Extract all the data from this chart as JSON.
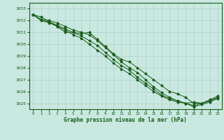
{
  "xlabel": "Graphe pression niveau de la mer (hPa)",
  "background_color": "#c8e8e0",
  "grid_color": "#b0d0c8",
  "line_color": "#1a5c1a",
  "text_color": "#1a5c1a",
  "ylim": [
    1024.5,
    1033.5
  ],
  "xlim": [
    -0.5,
    23.5
  ],
  "yticks": [
    1025,
    1026,
    1027,
    1028,
    1029,
    1030,
    1031,
    1032,
    1033
  ],
  "xticks": [
    0,
    1,
    2,
    3,
    4,
    5,
    6,
    7,
    8,
    9,
    10,
    11,
    12,
    13,
    14,
    15,
    16,
    17,
    18,
    19,
    20,
    21,
    22,
    23
  ],
  "series": [
    [
      1032.5,
      1032.3,
      1031.9,
      1031.5,
      1031.0,
      1031.0,
      1030.9,
      1031.0,
      1030.4,
      1029.8,
      1029.2,
      1028.7,
      1028.5,
      1028.0,
      1027.5,
      1027.0,
      1026.5,
      1026.0,
      1025.8,
      1025.5,
      1025.0,
      1025.0,
      1025.3,
      1025.6
    ],
    [
      1032.5,
      1032.1,
      1032.0,
      1031.8,
      1031.5,
      1031.2,
      1031.0,
      1030.8,
      1030.3,
      1029.7,
      1029.1,
      1028.5,
      1028.0,
      1027.6,
      1027.0,
      1026.4,
      1025.9,
      1025.5,
      1025.2,
      1025.0,
      1025.1,
      1025.0,
      1025.2,
      1025.5
    ],
    [
      1032.5,
      1032.0,
      1031.9,
      1031.6,
      1031.3,
      1031.0,
      1030.7,
      1030.3,
      1029.9,
      1029.3,
      1028.7,
      1028.2,
      1027.8,
      1027.2,
      1026.7,
      1026.2,
      1025.7,
      1025.4,
      1025.2,
      1025.0,
      1024.8,
      1025.0,
      1025.2,
      1025.5
    ],
    [
      1032.5,
      1032.0,
      1031.8,
      1031.5,
      1031.2,
      1030.8,
      1030.5,
      1030.0,
      1029.5,
      1029.0,
      1028.4,
      1027.9,
      1027.5,
      1027.0,
      1026.5,
      1026.0,
      1025.6,
      1025.3,
      1025.1,
      1025.0,
      1024.7,
      1024.9,
      1025.1,
      1025.4
    ]
  ]
}
